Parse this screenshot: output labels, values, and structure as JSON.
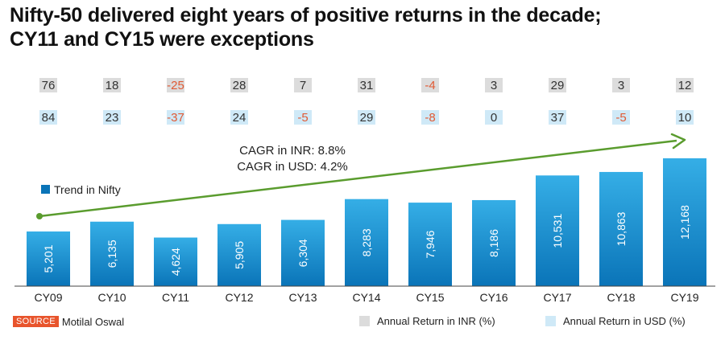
{
  "title_line1": "Nifty-50 delivered eight years of positive returns in the decade;",
  "title_line2": "CY11 and CY15 were exceptions",
  "source_label": "SOURCE",
  "source_text": "Motilal Oswal",
  "colors": {
    "bar_top": "#35aee6",
    "bar_bottom": "#0a74b8",
    "inr_box": "#dcdcdc",
    "usd_box": "#cfe9f7",
    "negative": "#e05a34",
    "positive": "#333333",
    "trend_line": "#5a9c2e"
  },
  "chart_data": {
    "type": "bar",
    "title": "Nifty-50 delivered eight years of positive returns in the decade; CY11 and CY15 were exceptions",
    "categories": [
      "CY09",
      "CY10",
      "CY11",
      "CY12",
      "CY13",
      "CY14",
      "CY15",
      "CY16",
      "CY17",
      "CY18",
      "CY19"
    ],
    "series": [
      {
        "name": "Trend in Nifty",
        "values": [
          5201,
          6135,
          4624,
          5905,
          6304,
          8283,
          7946,
          8186,
          10531,
          10863,
          12168
        ],
        "labels": [
          "5,201",
          "6,135",
          "4,624",
          "5,905",
          "6,304",
          "8,283",
          "7,946",
          "8,186",
          "10,531",
          "10,863",
          "12,168"
        ]
      },
      {
        "name": "Annual Return in INR (%)",
        "values": [
          76,
          18,
          -25,
          28,
          7,
          31,
          -4,
          3,
          29,
          3,
          12
        ]
      },
      {
        "name": "Annual Return in USD (%)",
        "values": [
          84,
          23,
          -37,
          24,
          -5,
          29,
          -8,
          0,
          37,
          -5,
          10
        ]
      }
    ],
    "annotations": [
      "CAGR in INR: 8.8%",
      "CAGR in USD: 4.2%"
    ],
    "legend": [
      "Trend in Nifty",
      "Annual Return in INR (%)",
      "Annual Return in USD (%)"
    ],
    "xlabel": "",
    "ylabel": "",
    "ylim": [
      0,
      13000
    ]
  }
}
